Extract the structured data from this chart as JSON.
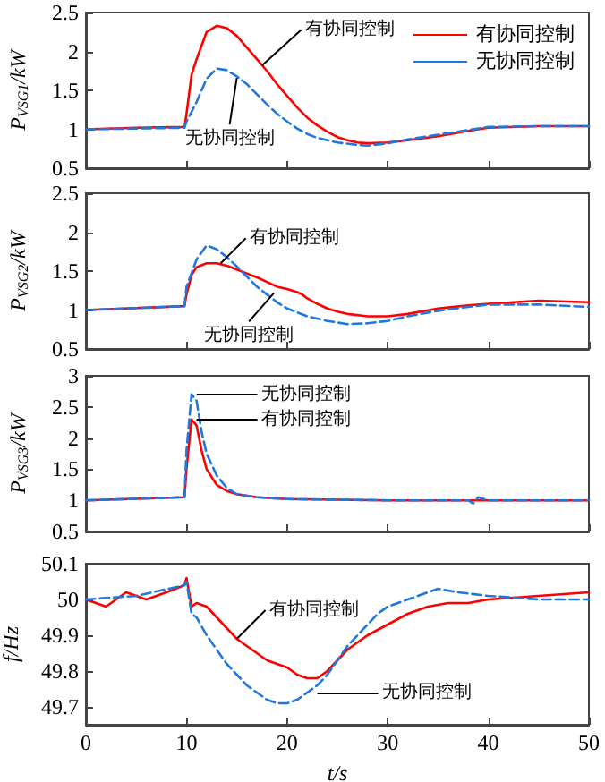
{
  "chart_data": [
    {
      "type": "line",
      "ylabel": "P$_{VSG1}$/kW",
      "xlim": [
        0,
        50
      ],
      "xticks": [
        0,
        10,
        20,
        30,
        40,
        50
      ],
      "ylim": [
        0.5,
        2.5
      ],
      "yticks": [
        0.5,
        1,
        1.5,
        2,
        2.5
      ],
      "tick_labels": "y",
      "grid": false,
      "legend": "top right",
      "marker": "none",
      "series": [
        {
          "name": "有协同控制",
          "color": "#ff0000",
          "line_style": "solid",
          "x": [
            0,
            5,
            9.8,
            10,
            10.5,
            11,
            12,
            13,
            14,
            15,
            16,
            17,
            18,
            19,
            20,
            21,
            22,
            23,
            24,
            25,
            26,
            27,
            28,
            30,
            32,
            35,
            38,
            40,
            45,
            50
          ],
          "values": [
            1.0,
            1.02,
            1.03,
            1.2,
            1.7,
            1.9,
            2.25,
            2.33,
            2.3,
            2.2,
            2.05,
            1.9,
            1.75,
            1.58,
            1.43,
            1.28,
            1.15,
            1.05,
            0.97,
            0.9,
            0.86,
            0.83,
            0.82,
            0.83,
            0.86,
            0.91,
            0.98,
            1.02,
            1.04,
            1.04
          ]
        },
        {
          "name": "无协同控制",
          "color": "#1f77e0",
          "line_style": "dashed",
          "x": [
            0,
            9.8,
            10,
            11,
            12,
            13,
            14,
            15,
            16,
            17,
            18,
            19,
            20,
            21,
            22,
            23,
            25,
            27,
            28,
            30,
            32,
            35,
            38,
            40,
            45,
            50
          ],
          "values": [
            1.0,
            1.02,
            1.1,
            1.35,
            1.65,
            1.78,
            1.76,
            1.68,
            1.58,
            1.45,
            1.32,
            1.2,
            1.1,
            1.01,
            0.94,
            0.89,
            0.83,
            0.8,
            0.79,
            0.82,
            0.87,
            0.93,
            0.99,
            1.03,
            1.04,
            1.04
          ]
        }
      ],
      "annotations": [
        {
          "text": "有协同控制",
          "x": 17.5,
          "y": 1.82
        },
        {
          "text": "无协同控制",
          "x": 15,
          "y": 1.66
        }
      ]
    },
    {
      "type": "line",
      "ylabel": "P$_{VSG2}$/kW",
      "xlim": [
        0,
        50
      ],
      "xticks": [
        0,
        10,
        20,
        30,
        40,
        50
      ],
      "ylim": [
        0.5,
        2.5
      ],
      "yticks": [
        0.5,
        1,
        1.5,
        2,
        2.5
      ],
      "tick_labels": "y",
      "grid": false,
      "marker": "none",
      "series": [
        {
          "color": "#ff0000",
          "line_style": "solid",
          "x": [
            0,
            9.8,
            10,
            10.5,
            11,
            12,
            13,
            14,
            15,
            16,
            17,
            18,
            19,
            20,
            21,
            21.5,
            22,
            23,
            24,
            25,
            26,
            28,
            30,
            32,
            35,
            38,
            40,
            45,
            50
          ],
          "values": [
            1.0,
            1.05,
            1.2,
            1.45,
            1.55,
            1.6,
            1.6,
            1.57,
            1.52,
            1.47,
            1.42,
            1.36,
            1.3,
            1.27,
            1.23,
            1.2,
            1.15,
            1.08,
            1.02,
            0.98,
            0.95,
            0.92,
            0.92,
            0.95,
            1.02,
            1.06,
            1.08,
            1.12,
            1.1
          ]
        },
        {
          "color": "#1f77e0",
          "line_style": "dashed",
          "x": [
            0,
            9.8,
            10,
            11,
            12,
            13,
            14,
            15,
            16,
            17,
            18,
            19,
            20,
            21,
            22,
            24,
            26,
            28,
            30,
            32,
            35,
            38,
            40,
            45,
            50
          ],
          "values": [
            1.0,
            1.05,
            1.3,
            1.65,
            1.83,
            1.78,
            1.68,
            1.56,
            1.43,
            1.3,
            1.2,
            1.1,
            1.02,
            0.97,
            0.92,
            0.86,
            0.82,
            0.83,
            0.86,
            0.92,
            0.99,
            1.04,
            1.07,
            1.07,
            1.04
          ]
        }
      ],
      "annotations": [
        {
          "text": "有协同控制",
          "x": 13.4,
          "y": 1.6
        },
        {
          "text": "无协同控制",
          "x": 18.7,
          "y": 1.22
        }
      ]
    },
    {
      "type": "line",
      "ylabel": "P$_{VSG3}$/kW",
      "xlim": [
        0,
        50
      ],
      "xticks": [
        0,
        10,
        20,
        30,
        40,
        50
      ],
      "ylim": [
        0.5,
        3
      ],
      "yticks": [
        0.5,
        1,
        1.5,
        2,
        2.5,
        3
      ],
      "tick_labels": "y",
      "grid": false,
      "marker": "none",
      "series": [
        {
          "color": "#ff0000",
          "line_style": "solid",
          "x": [
            0,
            9.8,
            10,
            10.5,
            11,
            11.5,
            12,
            13,
            14,
            15,
            17,
            20,
            30,
            50
          ],
          "values": [
            1.0,
            1.05,
            1.5,
            2.3,
            2.2,
            1.8,
            1.5,
            1.25,
            1.15,
            1.1,
            1.05,
            1.02,
            1.0,
            1.0
          ]
        },
        {
          "color": "#1f77e0",
          "line_style": "dashed",
          "x": [
            0,
            9.8,
            10,
            10.5,
            11,
            11.5,
            12,
            13,
            14,
            15,
            17,
            20,
            30,
            38,
            38.5,
            39,
            40,
            50
          ],
          "values": [
            1.0,
            1.05,
            1.8,
            2.7,
            2.6,
            2.1,
            1.75,
            1.4,
            1.2,
            1.1,
            1.05,
            1.02,
            1.0,
            1.0,
            0.95,
            1.05,
            1.0,
            1.0
          ]
        }
      ],
      "annotations": [
        {
          "text": "无协同控制",
          "x": 11,
          "y": 2.7
        },
        {
          "text": "有协同控制",
          "x": 11,
          "y": 2.3
        }
      ]
    },
    {
      "type": "line",
      "xlabel": "t/s",
      "ylabel": "f/Hz",
      "xlim": [
        0,
        50
      ],
      "xticks": [
        0,
        10,
        20,
        30,
        40,
        50
      ],
      "ylim": [
        49.65,
        50.1
      ],
      "yticks": [
        49.7,
        49.8,
        49.9,
        50,
        50.1
      ],
      "grid": false,
      "marker": "none",
      "series": [
        {
          "color": "#ff0000",
          "line_style": "solid",
          "x": [
            0,
            2,
            4,
            6,
            8,
            9.8,
            10,
            10.5,
            11,
            12,
            13,
            14,
            15,
            16,
            17,
            18,
            19,
            20,
            21,
            22,
            23,
            24,
            25,
            26,
            27,
            28,
            30,
            32,
            34,
            36,
            38,
            40,
            45,
            50
          ],
          "values": [
            50.0,
            49.98,
            50.02,
            50.0,
            50.02,
            50.04,
            50.06,
            49.98,
            49.99,
            49.98,
            49.95,
            49.92,
            49.89,
            49.87,
            49.85,
            49.83,
            49.82,
            49.81,
            49.79,
            49.78,
            49.78,
            49.8,
            49.83,
            49.86,
            49.88,
            49.9,
            49.93,
            49.96,
            49.98,
            49.99,
            49.99,
            50.0,
            50.01,
            50.02
          ]
        },
        {
          "color": "#1f77e0",
          "line_style": "dashed",
          "x": [
            0,
            5,
            9.8,
            10,
            10.5,
            11,
            12,
            13,
            14,
            15,
            16,
            17,
            18,
            19,
            20,
            21,
            22,
            23,
            24,
            25,
            26,
            27,
            28,
            29,
            30,
            32,
            35,
            37,
            40,
            45,
            50
          ],
          "values": [
            50.0,
            50.01,
            50.04,
            50.05,
            49.96,
            49.95,
            49.9,
            49.86,
            49.82,
            49.79,
            49.76,
            49.74,
            49.72,
            49.71,
            49.71,
            49.72,
            49.74,
            49.76,
            49.79,
            49.83,
            49.87,
            49.9,
            49.93,
            49.96,
            49.98,
            50.0,
            50.03,
            50.02,
            50.01,
            50.0,
            50.0
          ]
        }
      ],
      "annotations": [
        {
          "text": "有协同控制",
          "x": 15,
          "y": 49.89
        },
        {
          "text": "无协同控制",
          "x": 23,
          "y": 49.74
        }
      ]
    }
  ]
}
